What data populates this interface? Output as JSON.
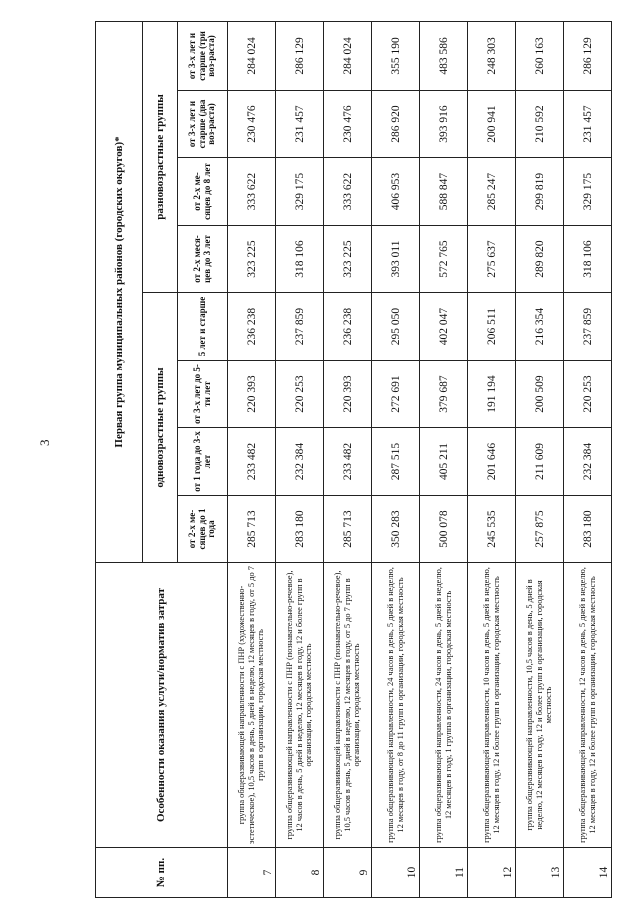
{
  "page_number": "3",
  "table": {
    "col_no": "№ пп.",
    "col_desc": "Особенности оказания услуги/норматив затрат",
    "group_title": "Первая группа муниципальных районов (городских округов)*",
    "same_age": "одновозрастные группы",
    "mixed_age": "разновозрастные группы",
    "subheaders": [
      "от 2-х ме-сяцев до 1 года",
      "от 1 года до 3-х лет",
      "от 3-х лет до 5-ти лет",
      "5 лет и старше",
      "от 2-х меся-цев до 3 лет",
      "от 2-х ме-сяцев до 8 лет",
      "от 3-х лет и старше (два воз-раста)",
      "от 3-х лет и старше (три воз-раста)"
    ],
    "rows": [
      {
        "no": "7",
        "desc": "группа общеразвивающей направленности с ПНР (художественно-эстетическое), 10,5 часов в день, 5 дней в неделю, 12 месяцев в году, от 5 до 7 групп в организации, городская местность",
        "values": [
          "285 713",
          "233 482",
          "220 393",
          "236 238",
          "323 225",
          "333 622",
          "230 476",
          "284 024"
        ]
      },
      {
        "no": "8",
        "desc": "группа общеразвивающей направленности с ПНР (познавательно-речевое), 12 часов в день, 5 дней в неделю, 12 месяцев в году, 12 и более групп в организации, городская местность",
        "values": [
          "283 180",
          "232 384",
          "220 253",
          "237 859",
          "318 106",
          "329 175",
          "231 457",
          "286 129"
        ]
      },
      {
        "no": "9",
        "desc": "группа общеразвивающей направленности с ПНР (познавательно-речевое), 10,5 часов в день, 5 дней в неделю, 12 месяцев в году, от 5 до 7 групп в организации, городская местность",
        "values": [
          "285 713",
          "233 482",
          "220 393",
          "236 238",
          "323 225",
          "333 622",
          "230 476",
          "284 024"
        ]
      },
      {
        "no": "10",
        "desc": "группа общеразвивающей направленности, 24 часов в день, 5 дней в неделю, 12 месяцев в году, от 8 до 11 групп в организации, городская местность",
        "values": [
          "350 283",
          "287 515",
          "272 691",
          "295 050",
          "393 011",
          "406 953",
          "286 920",
          "355 190"
        ]
      },
      {
        "no": "11",
        "desc": "группа общеразвивающей направленности, 24 часов в день, 5 дней в неделю, 12 месяцев в году, 1 группа в организации, городская местность",
        "values": [
          "500 078",
          "405 211",
          "379 687",
          "402 047",
          "572 765",
          "588 847",
          "393 916",
          "483 586"
        ]
      },
      {
        "no": "12",
        "desc": "группа общеразвивающей направленности, 10 часов в день, 5 дней в неделю, 12 месяцев в году, 12 и более групп в организации, городская местность",
        "values": [
          "245 535",
          "201 646",
          "191 194",
          "206 511",
          "275 637",
          "285 247",
          "200 941",
          "248 303"
        ]
      },
      {
        "no": "13",
        "desc": "группа общеразвивающей направленности, 10,5 часов в день, 5 дней в неделю, 12 месяцев в году, 12 и более групп в организации, городская местность",
        "values": [
          "257 875",
          "211 609",
          "200 509",
          "216 354",
          "289 820",
          "299 819",
          "210 592",
          "260 163"
        ]
      },
      {
        "no": "14",
        "desc": "группа общеразвивающей направленности, 12 часов в день, 5 дней в неделю, 12 месяцев в году, 12 и более групп в организации, городская местность",
        "values": [
          "283 180",
          "232 384",
          "220 253",
          "237 859",
          "318 106",
          "329 175",
          "231 457",
          "286 129"
        ]
      }
    ]
  }
}
